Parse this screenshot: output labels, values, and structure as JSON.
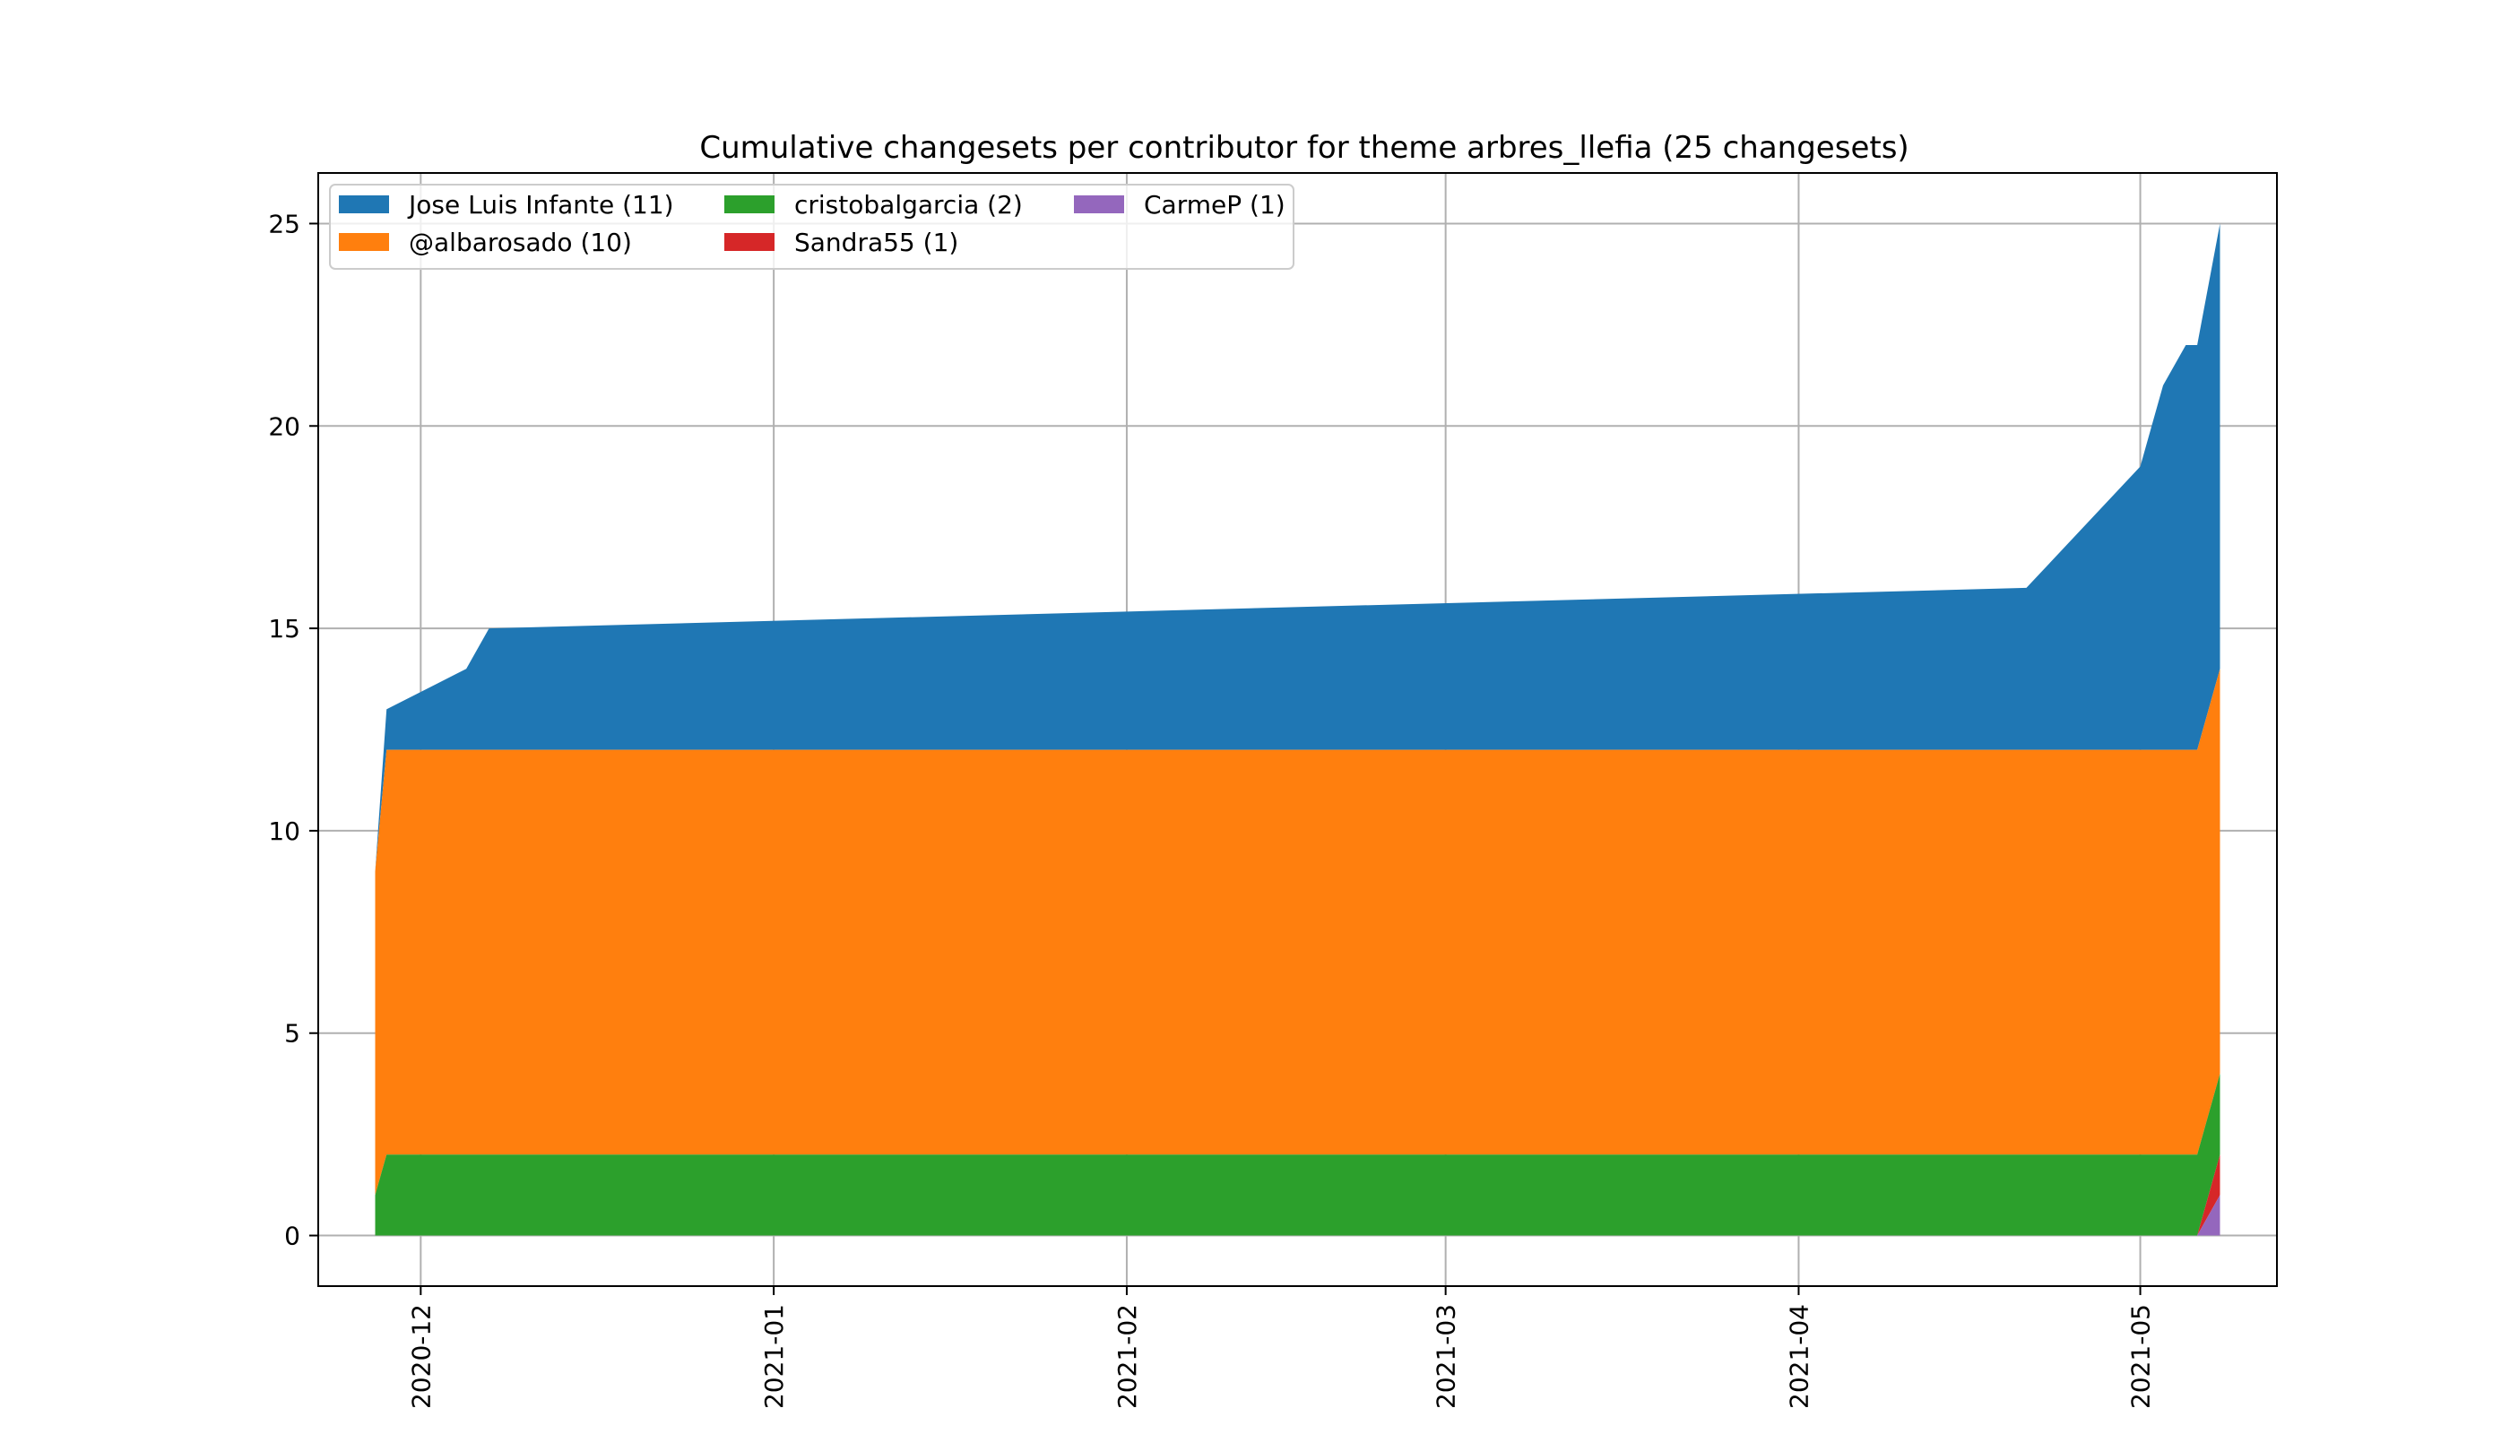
{
  "chart_data": {
    "type": "area",
    "stacked": true,
    "title": "Cumulative changesets per contributor for theme arbres_llefia (25 changesets)",
    "xlabel": "",
    "ylabel": "",
    "xlim": [
      "2020-11-22",
      "2021-05-13"
    ],
    "ylim": [
      -1.25,
      26.25
    ],
    "grid": true,
    "legend_position": "top-left",
    "x_ticks": [
      "2020-12",
      "2021-01",
      "2021-02",
      "2021-03",
      "2021-04",
      "2021-05"
    ],
    "y_ticks": [
      0,
      5,
      10,
      15,
      20,
      25
    ],
    "x": [
      "2020-11-27",
      "2020-11-28",
      "2020-12-05",
      "2020-12-07",
      "2021-04-21",
      "2021-05-01",
      "2021-05-03",
      "2021-05-05",
      "2021-05-06",
      "2021-05-08"
    ],
    "series": [
      {
        "name": "Jose Luis Infante (11)",
        "color": "#1f77b4",
        "values": [
          0,
          1,
          2,
          3,
          4,
          7,
          9,
          10,
          10,
          11
        ]
      },
      {
        "name": "@albarosado (10)",
        "color": "#ff7f0e",
        "values": [
          8,
          10,
          10,
          10,
          10,
          10,
          10,
          10,
          10,
          10
        ]
      },
      {
        "name": "cristobalgarcia (2)",
        "color": "#2ca02c",
        "values": [
          1,
          2,
          2,
          2,
          2,
          2,
          2,
          2,
          2,
          2
        ]
      },
      {
        "name": "Sandra55 (1)",
        "color": "#d62728",
        "values": [
          0,
          0,
          0,
          0,
          0,
          0,
          0,
          0,
          0,
          1
        ]
      },
      {
        "name": "CarmeP (1)",
        "color": "#9467bd",
        "values": [
          0,
          0,
          0,
          0,
          0,
          0,
          0,
          0,
          0,
          1
        ]
      }
    ]
  }
}
